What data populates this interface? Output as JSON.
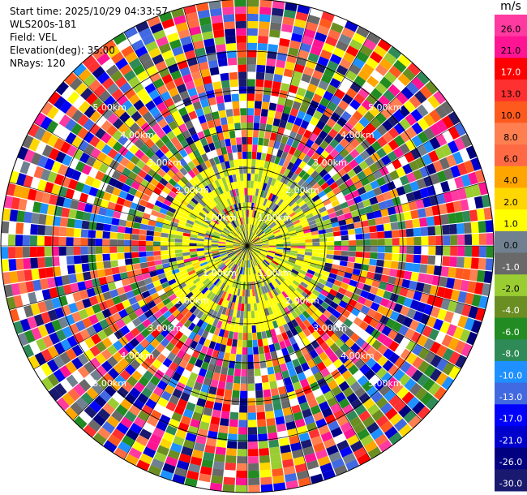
{
  "header": {
    "start_time": "Start time: 2025/10/29 04:33:57",
    "station": "WLS200s-181",
    "field": "Field: VEL",
    "elevation": "Elevation(deg): 35.00",
    "nrays": "NRays: 120"
  },
  "ppi": {
    "nrays": 120,
    "max_range_km": 5.0,
    "range_ring_labels": [
      "1.00km",
      "2.00km",
      "3.00km",
      "4.00km",
      "5.00km"
    ]
  },
  "colorbar": {
    "unit": "m/s",
    "labels": [
      "26.0",
      "21.0",
      "17.0",
      "13.0",
      "10.0",
      "8.0",
      "6.0",
      "4.0",
      "2.0",
      "1.0",
      "0.0",
      "-1.0",
      "-2.0",
      "-4.0",
      "-6.0",
      "-8.0",
      "-10.0",
      "-13.0",
      "-17.0",
      "-21.0",
      "-26.0",
      "-30.0"
    ],
    "colors": [
      "#ff3aa0",
      "#ff1493",
      "#ff0000",
      "#ff3030",
      "#ff5a1e",
      "#ff7f50",
      "#ff6a45",
      "#ffa500",
      "#ffd700",
      "#ffff00",
      "#708090",
      "#696969",
      "#9acd32",
      "#6b8e23",
      "#228b22",
      "#2e8b57",
      "#1e90ff",
      "#4169e1",
      "#0000ff",
      "#0000cd",
      "#000080",
      "#191970"
    ]
  }
}
